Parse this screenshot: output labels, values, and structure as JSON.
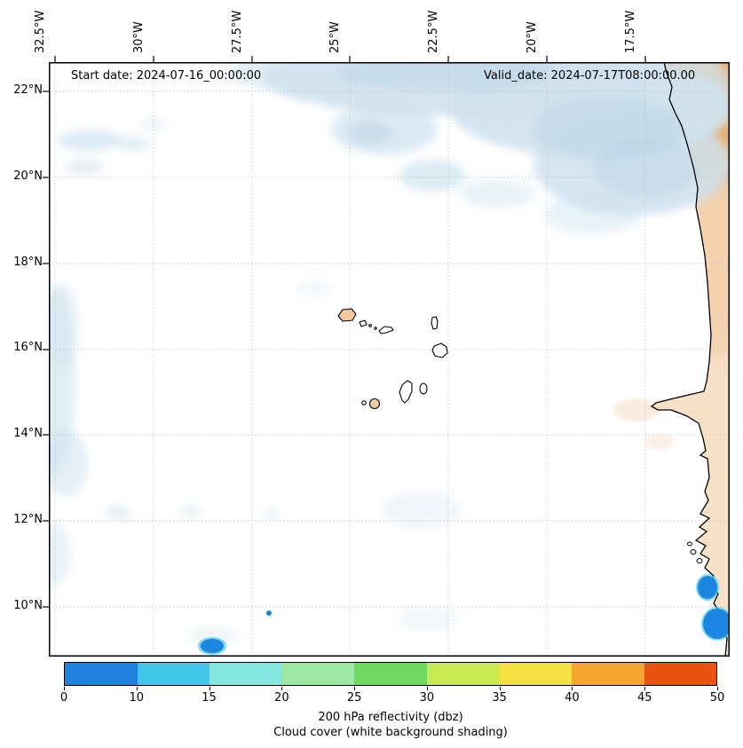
{
  "figure": {
    "annotations": {
      "start_date": "Start date: 2024-07-16_00:00:00",
      "valid_date": "Valid_date: 2024-07-17T08:00:00.00"
    }
  },
  "chart_data": {
    "type": "map",
    "projection": "lat-lon grid (Plate Carree style)",
    "region": "Eastern tropical Atlantic: Cape Verde archipelago and West African coast (Western Sahara to Guinea-Bissau)",
    "x_axis": {
      "side": "top",
      "ticks": [
        "32.5°W",
        "30°W",
        "27.5°W",
        "25°W",
        "22.5°W",
        "20°W",
        "17.5°W"
      ],
      "approx_range_deg_west": [
        32.65,
        15.35
      ],
      "grid": "dashed gray"
    },
    "y_axis": {
      "side": "left",
      "ticks": [
        "22°N",
        "20°N",
        "18°N",
        "16°N",
        "14°N",
        "12°N",
        "10°N"
      ],
      "approx_range_deg_north": [
        8.85,
        22.7
      ],
      "grid": "dashed gray"
    },
    "colorbar": {
      "orientation": "horizontal",
      "title_line1": "200 hPa reflectivity (dbz)",
      "title_line2": "Cloud cover (white background shading)",
      "tick_labels": [
        "0",
        "10",
        "15",
        "20",
        "25",
        "30",
        "35",
        "40",
        "45",
        "50"
      ],
      "boundaries": [
        0,
        10,
        15,
        20,
        25,
        30,
        35,
        40,
        45,
        50
      ],
      "colors": [
        "#1f80dd",
        "#40c8ea",
        "#85e6e0",
        "#9ce8a0",
        "#6fd95f",
        "#c8ea4e",
        "#f2e140",
        "#f6a62c",
        "#ea5210"
      ]
    },
    "features": [
      {
        "name": "cloud-band-northeast",
        "type": "cloud_cover",
        "desc": "broad light-blue cloud shading from ~26°W at the top edge stretching southeast toward the African coast between ~19°N and 23°N"
      },
      {
        "name": "cloud-patches-west",
        "type": "cloud_cover",
        "desc": "faint light-blue cloud shading along the western edge near 32.5°W from ~10°N to 18°N and small scattered patches near 21°N 30–31°W"
      },
      {
        "name": "reflectivity-cell-southwest",
        "type": "reflectivity",
        "value_dbz": "0-10",
        "approx_lon_deg_west": 28.5,
        "approx_lat_deg_north": 9.1
      },
      {
        "name": "reflectivity-cell-small",
        "type": "reflectivity",
        "value_dbz": "0-10",
        "approx_lon_deg_west": 27.0,
        "approx_lat_deg_north": 9.8
      },
      {
        "name": "reflectivity-cells-coast",
        "type": "reflectivity",
        "value_dbz": "0-10",
        "approx_lon_deg_west": 16.8,
        "approx_lat_deg_north": 10.0
      },
      {
        "name": "warm-shading-land",
        "type": "shading",
        "desc": "orange shading over West African land, strongest in the northeast corner near 16°W 22°N"
      },
      {
        "name": "cape-verde-islands",
        "type": "coastline",
        "desc": "Cape Verde islands outlined in black near 23–25.5°W, 14.8–17.2°N; Santo Antão and Fogo shown with tan fill"
      }
    ]
  },
  "colors": {
    "cloud": "#cfe2ee",
    "cloud2": "#bcd6e8",
    "land": "#f7e0c8",
    "landhot": "#e89b50",
    "reflect": "#1d86e0",
    "reflectring": "#45cbe9",
    "grid": "#c6c6c6",
    "coast": "#000000"
  }
}
